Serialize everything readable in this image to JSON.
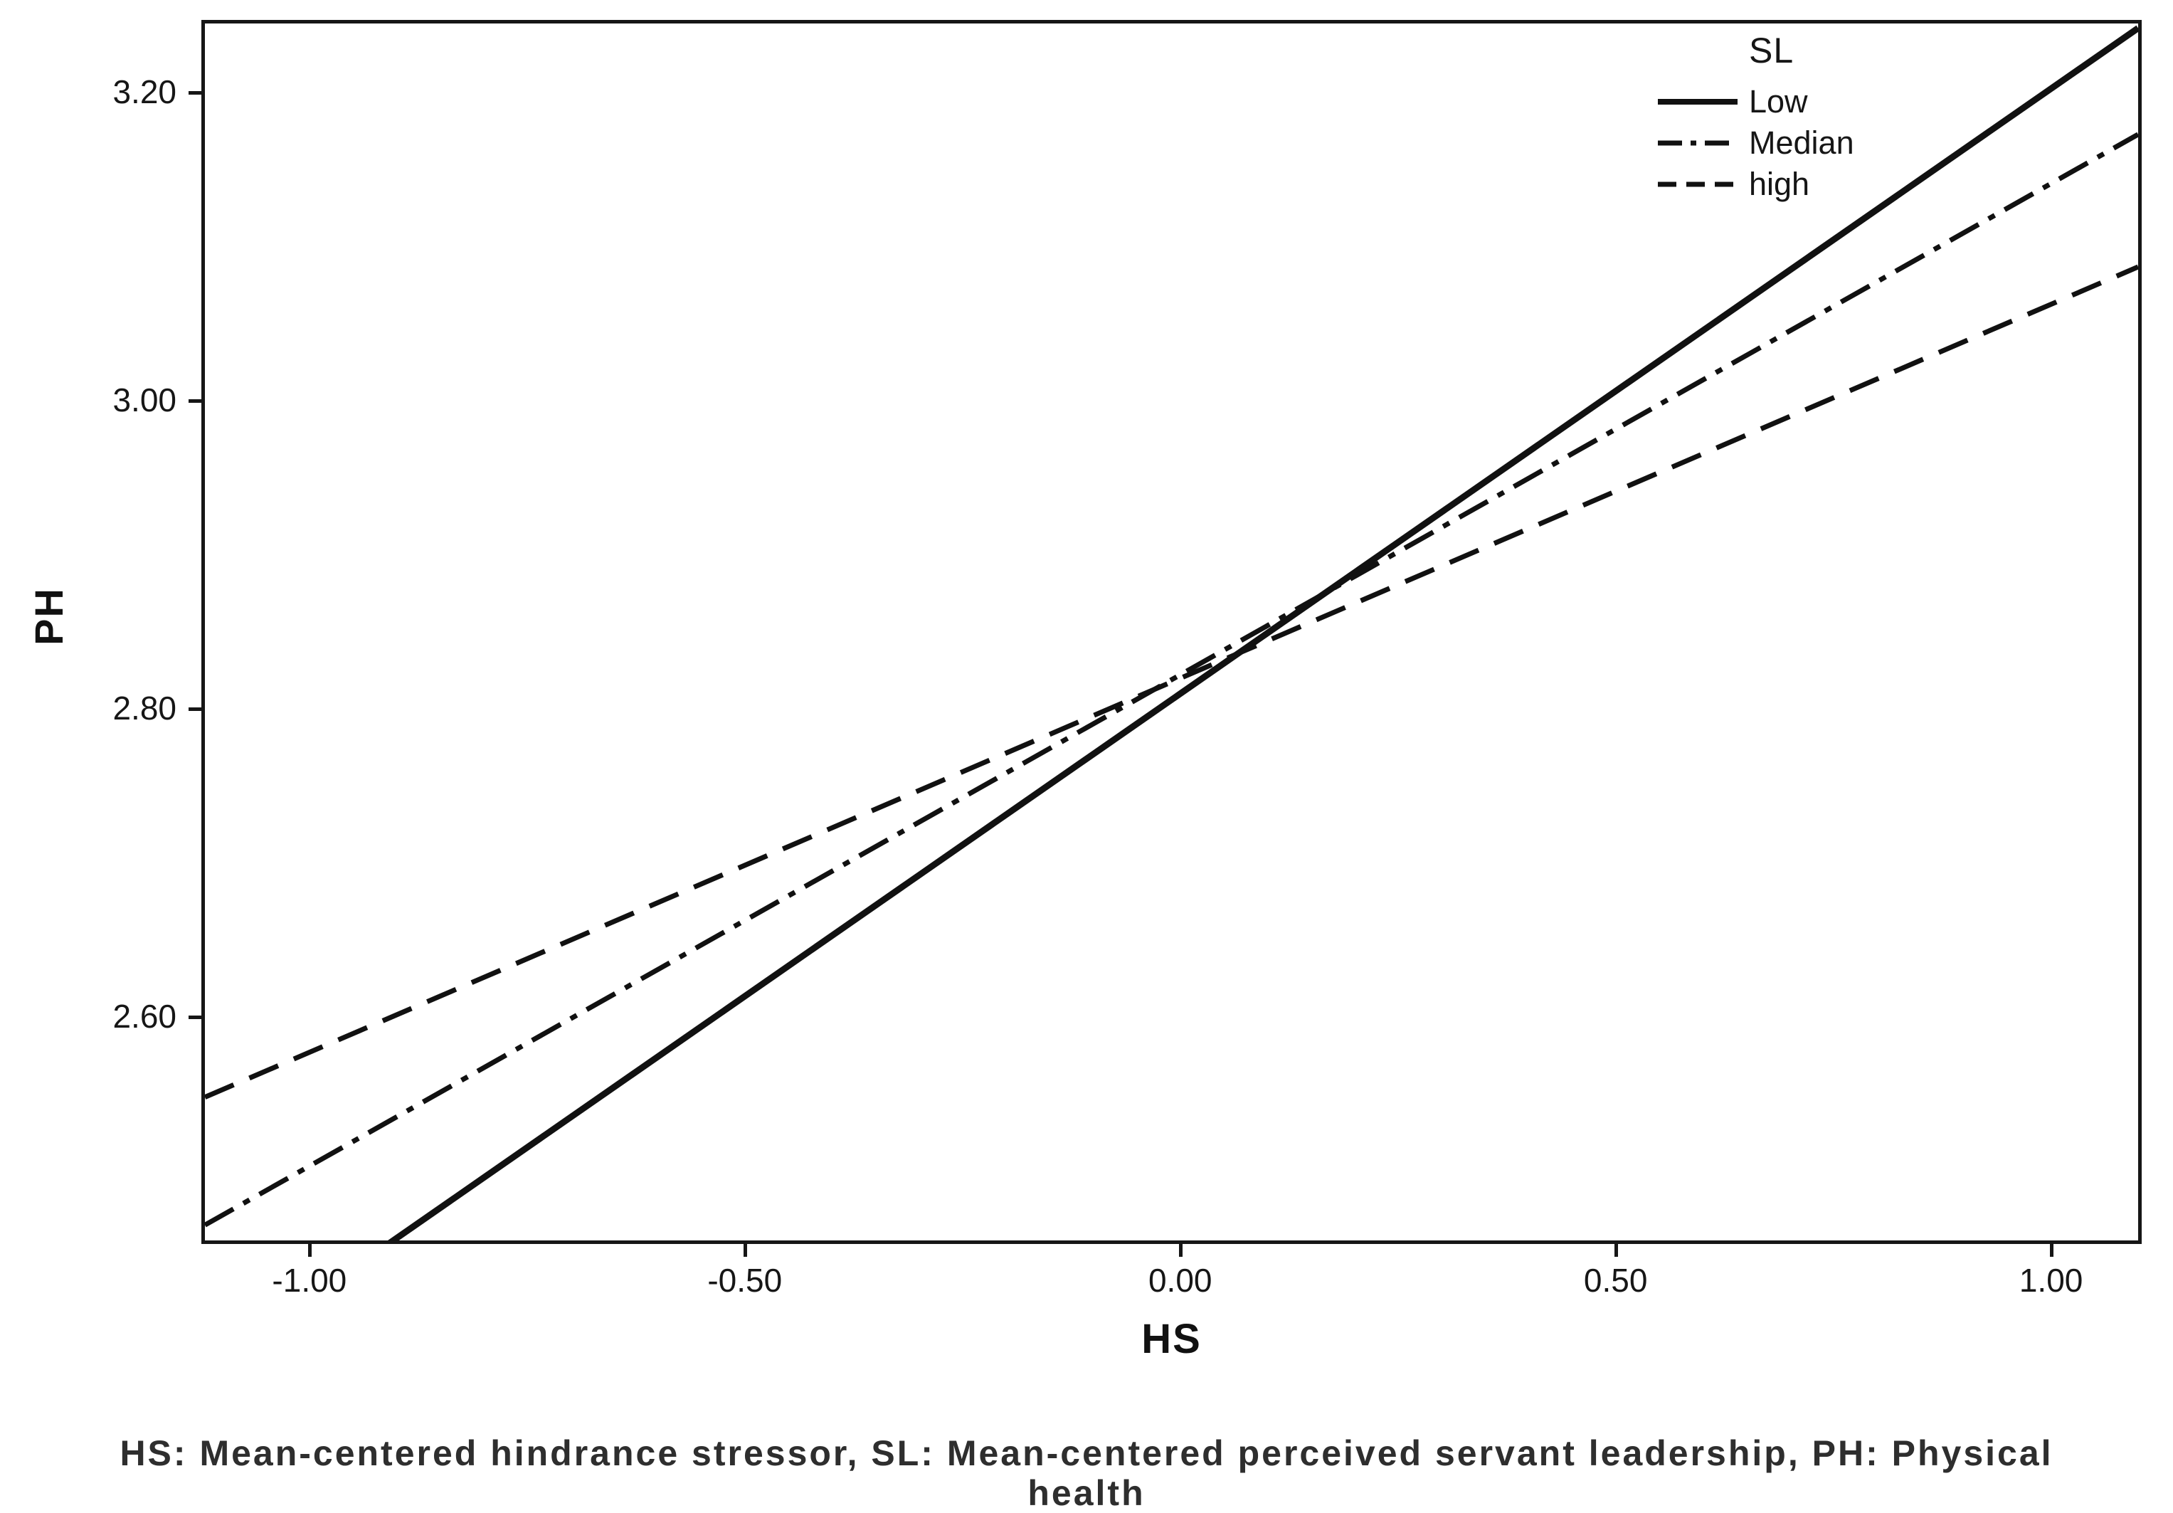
{
  "figure": {
    "background": "#ffffff"
  },
  "caption": {
    "line1": "HS: Mean-centered hindrance stressor, SL: Mean-centered perceived servant leadership, PH: Physical",
    "line2": "health"
  },
  "chart_data": {
    "type": "line",
    "title": "",
    "xlabel": "HS",
    "ylabel": "PH",
    "xlim": [
      -1.12,
      1.1
    ],
    "ylim": [
      2.455,
      3.245
    ],
    "grid": false,
    "frame_color": "#161616",
    "line_color": "#111111",
    "xticks": [
      {
        "value": -1.0,
        "label": "-1.00"
      },
      {
        "value": -0.5,
        "label": "-0.50"
      },
      {
        "value": 0.0,
        "label": "0.00"
      },
      {
        "value": 0.5,
        "label": "0.50"
      },
      {
        "value": 1.0,
        "label": "1.00"
      }
    ],
    "yticks": [
      {
        "value": 2.6,
        "label": "2.60"
      },
      {
        "value": 2.8,
        "label": "2.80"
      },
      {
        "value": 3.0,
        "label": "3.00"
      },
      {
        "value": 3.2,
        "label": "3.20"
      }
    ],
    "legend": {
      "title": "SL",
      "position": "top-right-inside",
      "entries": [
        "Low",
        "Median",
        "high"
      ]
    },
    "series": [
      {
        "name": "Low",
        "line_style": "solid",
        "slope": 0.393,
        "intercept": 2.81,
        "x": [
          -1.12,
          1.1
        ],
        "y": [
          2.37,
          3.242
        ]
      },
      {
        "name": "Median",
        "line_style": "dash-dot",
        "slope": 0.319,
        "intercept": 2.822,
        "x": [
          -1.12,
          1.1
        ],
        "y": [
          2.465,
          3.173
        ]
      },
      {
        "name": "high",
        "line_style": "dashed",
        "slope": 0.243,
        "intercept": 2.82,
        "x": [
          -1.12,
          1.1
        ],
        "y": [
          2.548,
          3.087
        ]
      }
    ],
    "caption": "HS: Mean-centered hindrance stressor, SL: Mean-centered perceived servant leadership, PH: Physical health"
  }
}
